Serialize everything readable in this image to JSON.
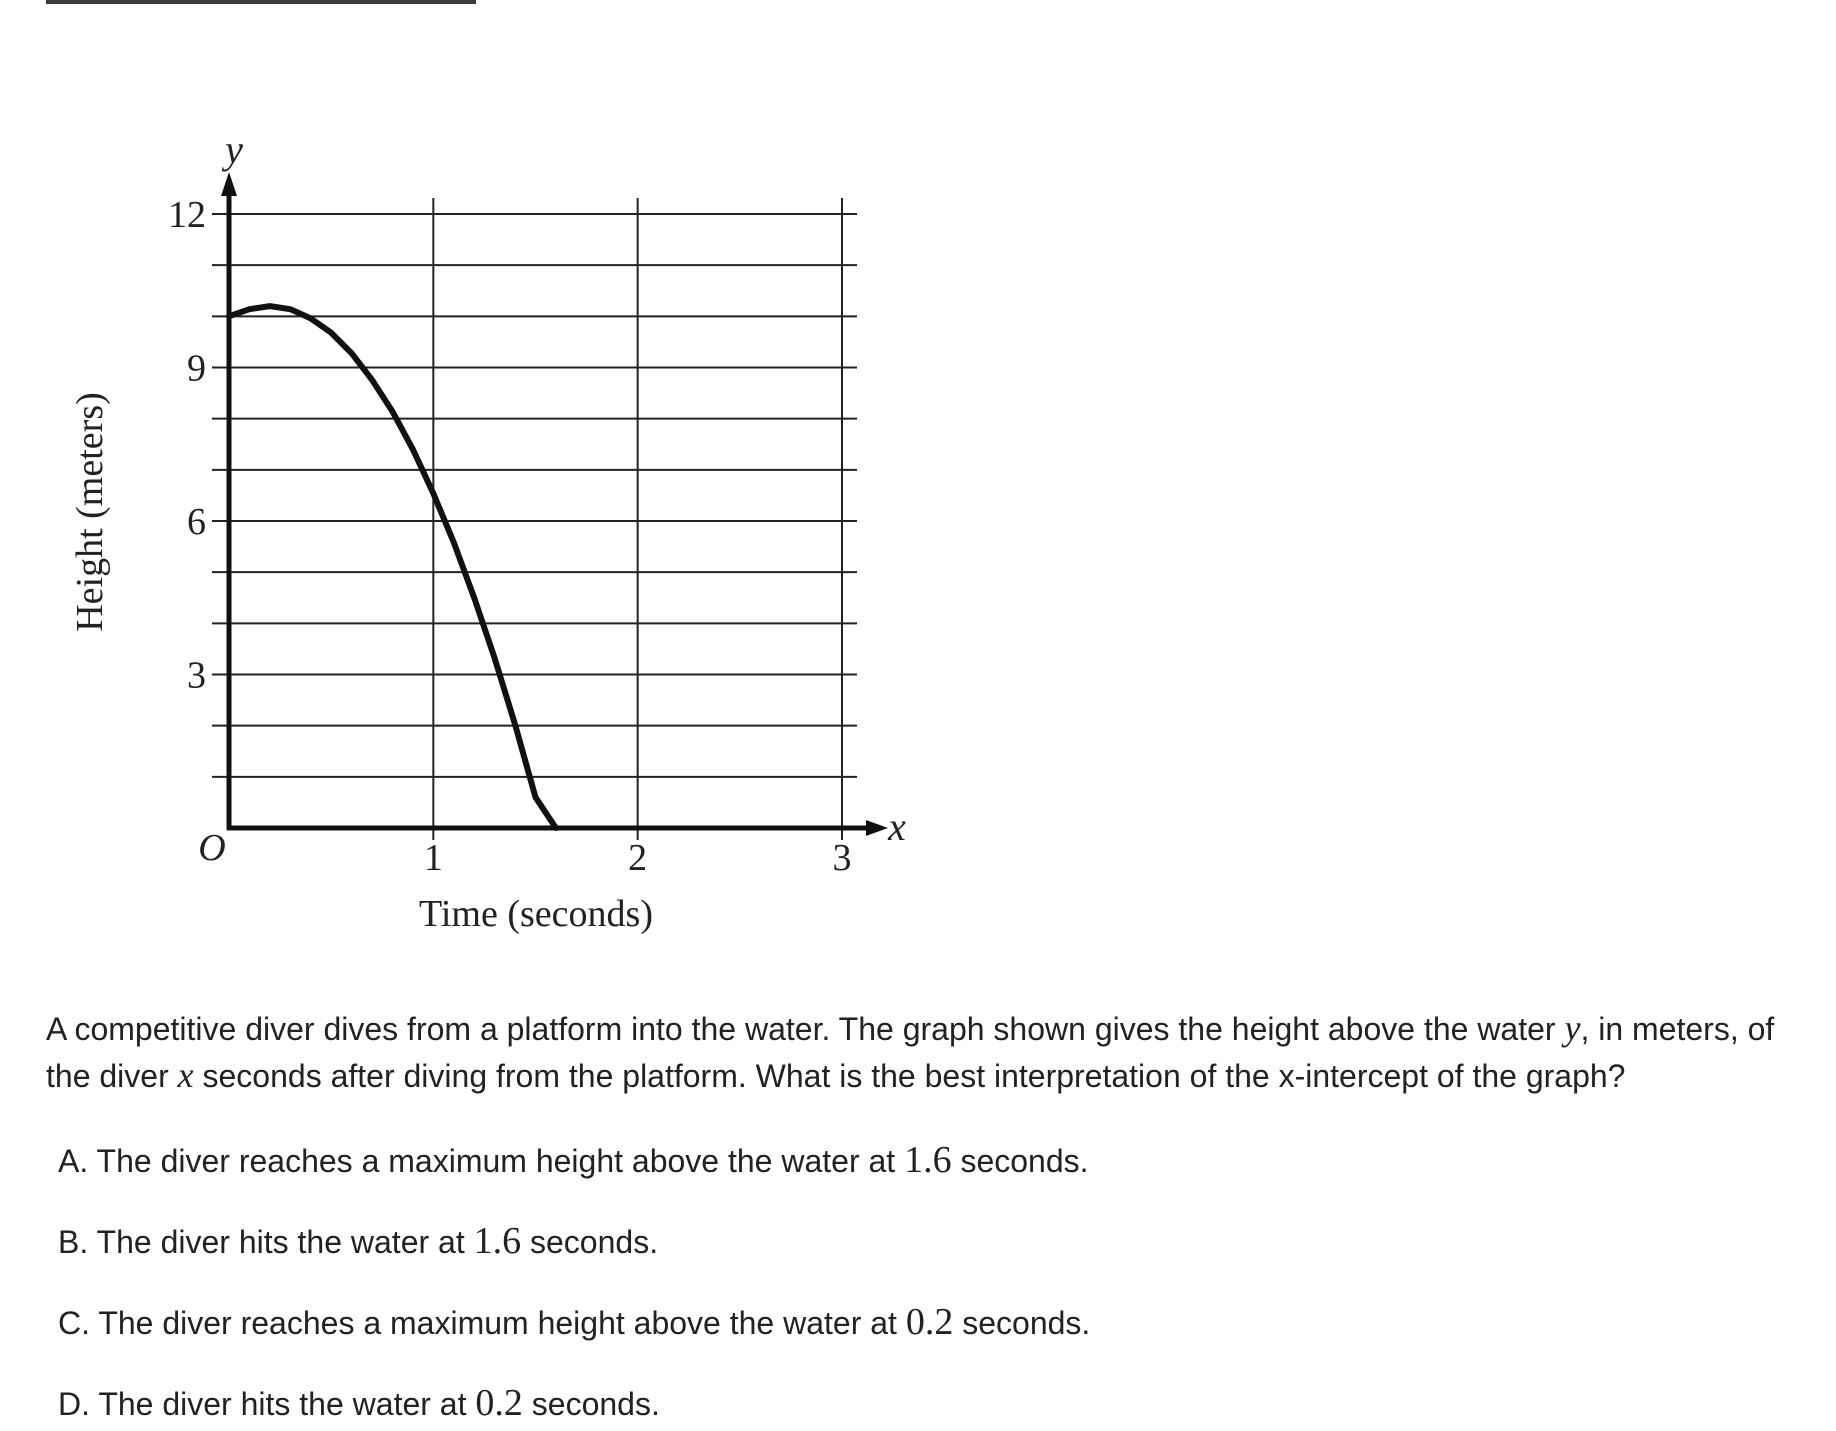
{
  "chart_data": {
    "type": "line",
    "xlabel": "Time (seconds)",
    "ylabel": "Height (meters)",
    "x_axis_letter": "x",
    "y_axis_letter": "y",
    "origin_label": "O",
    "xlim": [
      0,
      3
    ],
    "ylim": [
      0,
      12
    ],
    "x_ticks": [
      {
        "value": 1,
        "label": "1"
      },
      {
        "value": 2,
        "label": "2"
      },
      {
        "value": 3,
        "label": "3"
      }
    ],
    "y_ticks": [
      {
        "value": 3,
        "label": "3"
      },
      {
        "value": 6,
        "label": "6"
      },
      {
        "value": 9,
        "label": "9"
      },
      {
        "value": 12,
        "label": "12"
      }
    ],
    "x_gridlines": [
      1,
      2,
      3
    ],
    "y_gridlines": [
      1,
      2,
      3,
      4,
      5,
      6,
      7,
      8,
      9,
      10,
      11,
      12
    ],
    "grid": true,
    "series": [
      {
        "x": [
          0,
          0.1,
          0.2,
          0.3,
          0.4,
          0.5,
          0.6,
          0.7,
          0.8,
          0.9,
          1.0,
          1.1,
          1.2,
          1.3,
          1.4,
          1.5,
          1.6
        ],
        "y": [
          10.0,
          10.14,
          10.2,
          10.14,
          9.96,
          9.68,
          9.28,
          8.76,
          8.14,
          7.4,
          6.54,
          5.58,
          4.5,
          3.32,
          2.02,
          0.6,
          0.0
        ],
        "color": "#111111"
      }
    ]
  },
  "question": {
    "part1": "A competitive diver dives from a platform into the water. The graph shown gives the height above the water ",
    "var_y": "y",
    "part2": ", in meters, of the diver ",
    "var_x": "x",
    "part3": " seconds after diving from the platform. What is the best interpretation of the ",
    "x_intercept_term": "x",
    "part4": "-intercept of the graph?"
  },
  "choices": [
    {
      "letter": "A.",
      "pre": "The diver reaches a maximum height above the water at ",
      "value": "1.6",
      "post": " seconds."
    },
    {
      "letter": "B.",
      "pre": "The diver hits the water at ",
      "value": "1.6",
      "post": " seconds."
    },
    {
      "letter": "C.",
      "pre": "The diver reaches a maximum height above the water at ",
      "value": "0.2",
      "post": " seconds."
    },
    {
      "letter": "D.",
      "pre": "The diver hits the water at ",
      "value": "0.2",
      "post": " seconds."
    }
  ]
}
